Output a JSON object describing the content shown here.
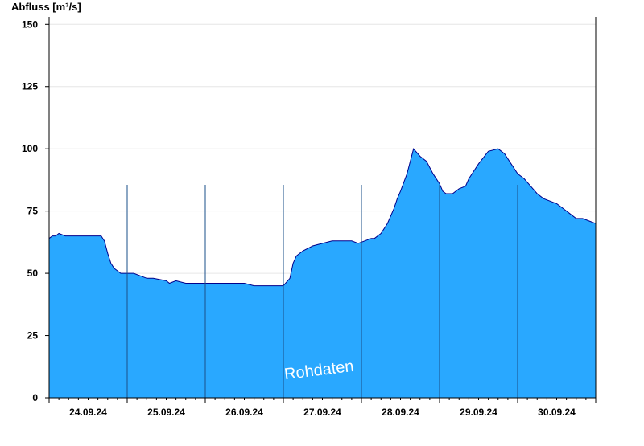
{
  "chart_data": {
    "type": "area",
    "ylabel": "Abfluss [m³/s]",
    "xlim": [
      "2024-09-23T12:00",
      "2024-09-30T12:00"
    ],
    "ylim": [
      0,
      153
    ],
    "yticks": [
      0,
      25,
      50,
      75,
      100,
      125,
      150
    ],
    "ytick_labels": [
      "0",
      "25",
      "50",
      "75",
      "100",
      "125",
      "150"
    ],
    "xtick_labels": [
      "24.09.24",
      "25.09.24",
      "26.09.24",
      "27.09.24",
      "28.09.24",
      "29.09.24",
      "30.09.24"
    ],
    "x_label_dates": [
      "2024-09-24T00:00",
      "2024-09-25T00:00",
      "2024-09-26T00:00",
      "2024-09-27T00:00",
      "2024-09-28T00:00",
      "2024-09-29T00:00",
      "2024-09-30T00:00"
    ],
    "day_separators": [
      "2024-09-24T12:00",
      "2024-09-25T12:00",
      "2024-09-26T12:00",
      "2024-09-27T12:00",
      "2024-09-28T12:00",
      "2024-09-29T12:00"
    ],
    "grid": "horizontal",
    "fill_color": "#29a8ff",
    "line_color": "#00008b",
    "watermark": "Rohdaten",
    "series": [
      {
        "x": [
          "2024-09-23T12:00",
          "2024-09-23T13:00",
          "2024-09-23T14:00",
          "2024-09-23T15:00",
          "2024-09-23T17:00",
          "2024-09-23T20:00",
          "2024-09-24T00:00",
          "2024-09-24T04:00",
          "2024-09-24T05:00",
          "2024-09-24T06:00",
          "2024-09-24T07:00",
          "2024-09-24T08:00",
          "2024-09-24T09:00",
          "2024-09-24T10:00",
          "2024-09-24T12:00",
          "2024-09-24T14:00",
          "2024-09-24T16:00",
          "2024-09-24T18:00",
          "2024-09-24T20:00",
          "2024-09-25T00:00",
          "2024-09-25T01:00",
          "2024-09-25T03:00",
          "2024-09-25T06:00",
          "2024-09-26T00:00",
          "2024-09-26T03:00",
          "2024-09-26T08:00",
          "2024-09-26T12:00",
          "2024-09-26T14:00",
          "2024-09-26T15:00",
          "2024-09-26T16:00",
          "2024-09-26T18:00",
          "2024-09-26T21:00",
          "2024-09-27T00:00",
          "2024-09-27T03:00",
          "2024-09-27T06:00",
          "2024-09-27T09:00",
          "2024-09-27T11:00",
          "2024-09-27T13:00",
          "2024-09-27T15:00",
          "2024-09-27T16:00",
          "2024-09-27T18:00",
          "2024-09-27T20:00",
          "2024-09-27T22:00",
          "2024-09-27T23:00",
          "2024-09-28T00:00",
          "2024-09-28T02:00",
          "2024-09-28T04:00",
          "2024-09-28T06:00",
          "2024-09-28T08:00",
          "2024-09-28T10:00",
          "2024-09-28T12:00",
          "2024-09-28T13:00",
          "2024-09-28T14:00",
          "2024-09-28T16:00",
          "2024-09-28T18:00",
          "2024-09-28T20:00",
          "2024-09-28T21:00",
          "2024-09-29T00:00",
          "2024-09-29T03:00",
          "2024-09-29T06:00",
          "2024-09-29T08:00",
          "2024-09-29T10:00",
          "2024-09-29T12:00",
          "2024-09-29T14:00",
          "2024-09-29T16:00",
          "2024-09-29T18:00",
          "2024-09-29T20:00",
          "2024-09-30T00:00",
          "2024-09-30T02:00",
          "2024-09-30T04:00",
          "2024-09-30T06:00",
          "2024-09-30T08:00",
          "2024-09-30T10:00",
          "2024-09-30T12:00"
        ],
        "values": [
          64,
          65,
          65,
          66,
          65,
          65,
          65,
          65,
          63,
          58,
          54,
          52,
          51,
          50,
          50,
          50,
          49,
          48,
          48,
          47,
          46,
          47,
          46,
          46,
          45,
          45,
          45,
          48,
          54,
          57,
          59,
          61,
          62,
          63,
          63,
          63,
          62,
          63,
          64,
          64,
          66,
          70,
          76,
          80,
          83,
          90,
          100,
          97,
          95,
          90,
          86,
          83,
          82,
          82,
          84,
          85,
          88,
          94,
          99,
          100,
          98,
          94,
          90,
          88,
          85,
          82,
          80,
          78,
          76,
          74,
          72,
          72,
          71,
          70
        ]
      }
    ]
  }
}
